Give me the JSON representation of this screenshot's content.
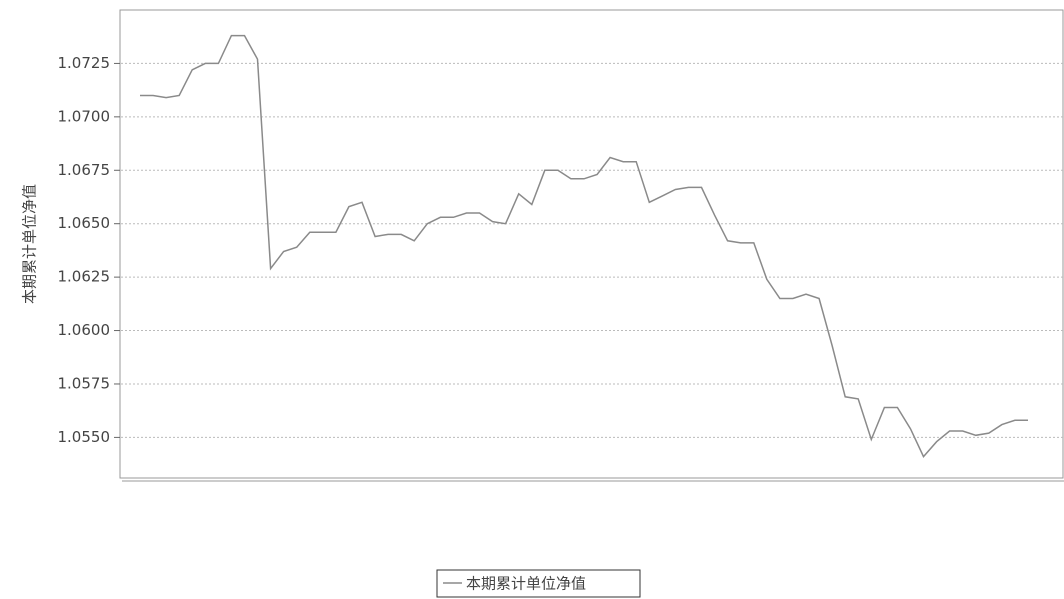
{
  "chart_data": {
    "type": "line",
    "y_label": "本期累计单位净值",
    "series": [
      {
        "name": "本期累计单位净值",
        "color": "#8a8a8a",
        "values": [
          1.071,
          1.071,
          1.0709,
          1.071,
          1.0722,
          1.0725,
          1.0725,
          1.0738,
          1.0738,
          1.0727,
          1.0629,
          1.0637,
          1.0639,
          1.0646,
          1.0646,
          1.0646,
          1.0658,
          1.066,
          1.0644,
          1.0645,
          1.0645,
          1.0642,
          1.065,
          1.0653,
          1.0653,
          1.0655,
          1.0655,
          1.0651,
          1.065,
          1.0664,
          1.0659,
          1.0675,
          1.0675,
          1.0671,
          1.0671,
          1.0673,
          1.0681,
          1.0679,
          1.0679,
          1.066,
          1.0663,
          1.0666,
          1.0667,
          1.0667,
          1.0654,
          1.0642,
          1.0641,
          1.0641,
          1.0624,
          1.0615,
          1.0615,
          1.0617,
          1.0615,
          1.0593,
          1.0569,
          1.0568,
          1.0549,
          1.0564,
          1.0564,
          1.0554,
          1.0541,
          1.0548,
          1.0553,
          1.0553,
          1.0551,
          1.0552,
          1.0556,
          1.0558,
          1.0558
        ]
      }
    ],
    "ylim": [
      1.0531,
      1.075
    ],
    "yticks": [
      {
        "value": 1.055,
        "label": "1.0550"
      },
      1.0575,
      {
        "value": 1.06,
        "label": "1.0600"
      },
      1.0625,
      {
        "value": 1.065,
        "label": "1.0650"
      },
      1.0675,
      {
        "value": 1.07,
        "label": "1.0700"
      },
      1.0725
    ],
    "grid": true
  }
}
